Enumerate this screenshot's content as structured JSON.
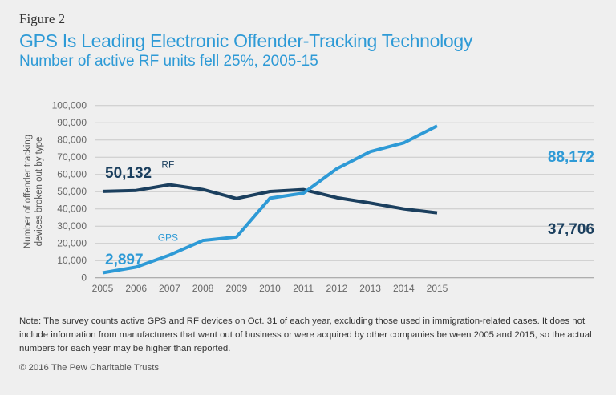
{
  "figure_label": "Figure 2",
  "chart_data": {
    "type": "line",
    "title": "GPS Is Leading Electronic Offender-Tracking Technology",
    "subtitle": "Number of active RF units fell 25%, 2005-15",
    "ylabel": "Number of offender tracking devices broken out by type",
    "xlabel": "",
    "x": [
      2005,
      2006,
      2007,
      2008,
      2009,
      2010,
      2011,
      2012,
      2013,
      2014,
      2015
    ],
    "ylim": [
      0,
      100000
    ],
    "yticks": [
      "0",
      "10,000",
      "20,000",
      "30,000",
      "40,000",
      "50,000",
      "60,000",
      "70,000",
      "80,000",
      "90,000",
      "100,000"
    ],
    "grid": true,
    "series": [
      {
        "name": "RF",
        "color": "#1b3f5e",
        "values": [
          50132,
          50700,
          54000,
          51200,
          46000,
          50100,
          51200,
          46500,
          43400,
          40000,
          37706
        ],
        "start_label": "50,132",
        "end_label": "37,706"
      },
      {
        "name": "GPS",
        "color": "#2e9ad6",
        "values": [
          2897,
          6200,
          13200,
          21700,
          23700,
          46200,
          49100,
          63300,
          73200,
          78300,
          88172
        ],
        "start_label": "2,897",
        "end_label": "88,172"
      }
    ]
  },
  "note": "Note: The survey counts active GPS and RF devices on Oct. 31 of each year, excluding those used in immigration-related cases. It does not include information from manufacturers that went out of business or were acquired by other companies between 2005 and 2015, so the actual numbers for each year may be higher than reported.",
  "copyright": "© 2016 The Pew Charitable Trusts"
}
